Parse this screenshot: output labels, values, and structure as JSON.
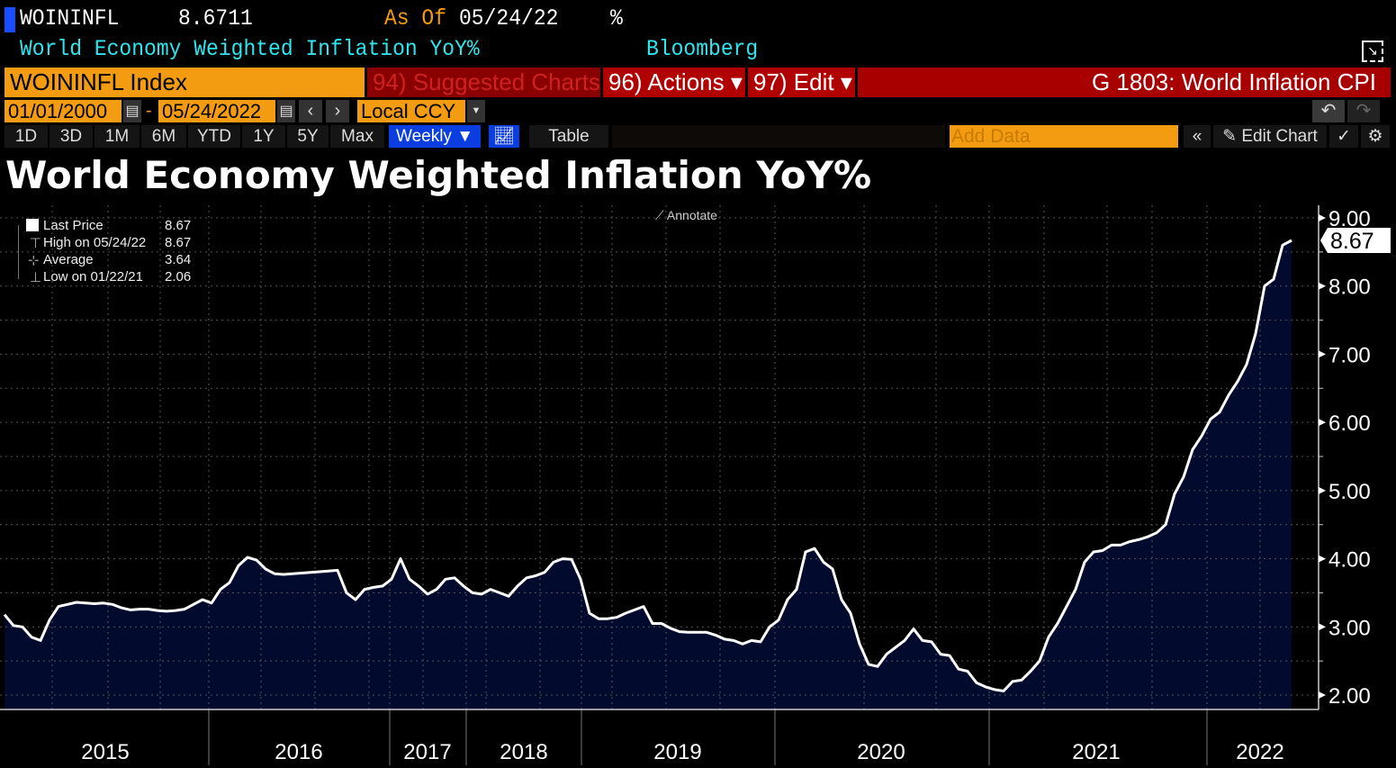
{
  "header": {
    "ticker": "WOININFL",
    "last_value": "8.6711",
    "as_of_label": "As Of",
    "as_of_date": "05/24/22",
    "unit": "%",
    "description": "World Economy Weighted Inflation YoY%",
    "source": "Bloomberg"
  },
  "command_bar": {
    "security": "WOININFL Index",
    "suggested": "94) Suggested Charts",
    "actions": "96) Actions ▾",
    "edit": "97) Edit ▾",
    "chart_title": "G 1803: World Inflation CPI"
  },
  "date_row": {
    "start": "01/01/2000",
    "sep": "-",
    "end": "05/24/2022",
    "currency": "Local CCY"
  },
  "toolbar": {
    "periods": [
      "1D",
      "3D",
      "1M",
      "6M",
      "YTD",
      "1Y",
      "5Y",
      "Max"
    ],
    "frequency": "Weekly ▼",
    "table": "Table",
    "add_data_placeholder": "Add Data",
    "edit_chart": "Edit Chart"
  },
  "legend": {
    "annotate": "Annotate",
    "rows": [
      {
        "label": "Last Price",
        "value": "8.67"
      },
      {
        "label": "High on 05/24/22",
        "value": "8.67"
      },
      {
        "label": "Average",
        "value": "3.64"
      },
      {
        "label": "Low on 01/22/21",
        "value": "2.06"
      }
    ]
  },
  "colors": {
    "line": "#ffffff",
    "area": "#020a2e",
    "accent_orange": "#f39c12",
    "command_red": "#a80000",
    "cyan": "#2fe6ee"
  },
  "chart_data": {
    "type": "area",
    "title": "World Economy Weighted Inflation YoY%",
    "ylim": [
      2,
      9
    ],
    "y_ticks": [
      "2.00",
      "3.00",
      "4.00",
      "5.00",
      "6.00",
      "7.00",
      "8.00",
      "9.00"
    ],
    "x_tick_labels": [
      "2015",
      "2016",
      "2017",
      "2018",
      "2019",
      "2020",
      "2021",
      "2022"
    ],
    "last_label": "8.67",
    "frequency": "Weekly",
    "grid": true,
    "legend_position": "top-left",
    "values": [
      3.18,
      3.02,
      3.0,
      2.85,
      2.8,
      3.1,
      3.3,
      3.33,
      3.36,
      3.35,
      3.34,
      3.35,
      3.33,
      3.28,
      3.25,
      3.26,
      3.26,
      3.24,
      3.23,
      3.24,
      3.26,
      3.33,
      3.4,
      3.35,
      3.55,
      3.65,
      3.9,
      4.02,
      3.98,
      3.85,
      3.78,
      3.77,
      3.78,
      3.79,
      3.8,
      3.81,
      3.82,
      3.83,
      3.5,
      3.4,
      3.55,
      3.58,
      3.6,
      3.7,
      4.0,
      3.7,
      3.6,
      3.48,
      3.55,
      3.7,
      3.72,
      3.6,
      3.5,
      3.48,
      3.55,
      3.5,
      3.45,
      3.6,
      3.72,
      3.75,
      3.8,
      3.95,
      4.0,
      3.99,
      3.7,
      3.2,
      3.12,
      3.12,
      3.14,
      3.2,
      3.25,
      3.3,
      3.05,
      3.05,
      2.98,
      2.93,
      2.92,
      2.92,
      2.92,
      2.88,
      2.82,
      2.8,
      2.75,
      2.8,
      2.78,
      3.0,
      3.1,
      3.4,
      3.55,
      4.1,
      4.15,
      3.95,
      3.85,
      3.4,
      3.2,
      2.75,
      2.45,
      2.42,
      2.6,
      2.7,
      2.8,
      2.97,
      2.8,
      2.78,
      2.6,
      2.58,
      2.38,
      2.35,
      2.18,
      2.12,
      2.08,
      2.06,
      2.2,
      2.22,
      2.35,
      2.5,
      2.85,
      3.05,
      3.3,
      3.55,
      3.95,
      4.1,
      4.12,
      4.2,
      4.2,
      4.25,
      4.28,
      4.32,
      4.38,
      4.5,
      4.95,
      5.2,
      5.6,
      5.8,
      6.05,
      6.15,
      6.4,
      6.6,
      6.85,
      7.3,
      8.0,
      8.1,
      8.6,
      8.67
    ]
  }
}
